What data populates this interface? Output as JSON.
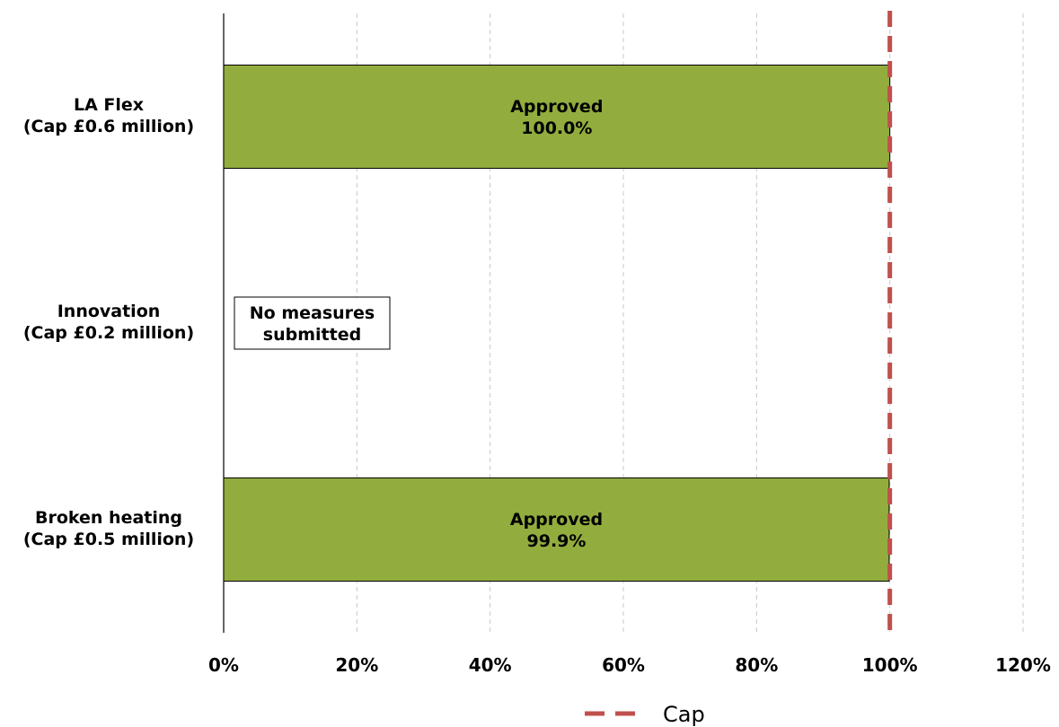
{
  "chart_data": {
    "type": "bar",
    "orientation": "horizontal",
    "categories": [
      [
        "LA Flex",
        "(Cap £0.6 million)"
      ],
      [
        "Innovation",
        "(Cap £0.2 million)"
      ],
      [
        "Broken heating",
        "(Cap £0.5 million)"
      ]
    ],
    "series": [
      {
        "values": [
          100.0,
          null,
          99.9
        ],
        "data_labels": [
          [
            "Approved",
            "100.0%"
          ],
          null,
          [
            "Approved",
            "99.9%"
          ]
        ],
        "color": "#92ad3e"
      }
    ],
    "annotations": [
      {
        "category_index": 1,
        "lines": [
          "No measures",
          "submitted"
        ]
      }
    ],
    "reference_line": {
      "name": "Cap",
      "value": 100,
      "color": "#c0504d",
      "style": "dashed"
    },
    "xlim": [
      0,
      120
    ],
    "xticks": [
      0,
      20,
      40,
      60,
      80,
      100,
      120
    ],
    "tick_labels": [
      "0%",
      "20%",
      "40%",
      "60%",
      "80%",
      "100%",
      "120%"
    ],
    "grid": "vertical-dashed",
    "legend": {
      "placement": "bottom",
      "entries": [
        "Cap"
      ]
    }
  }
}
